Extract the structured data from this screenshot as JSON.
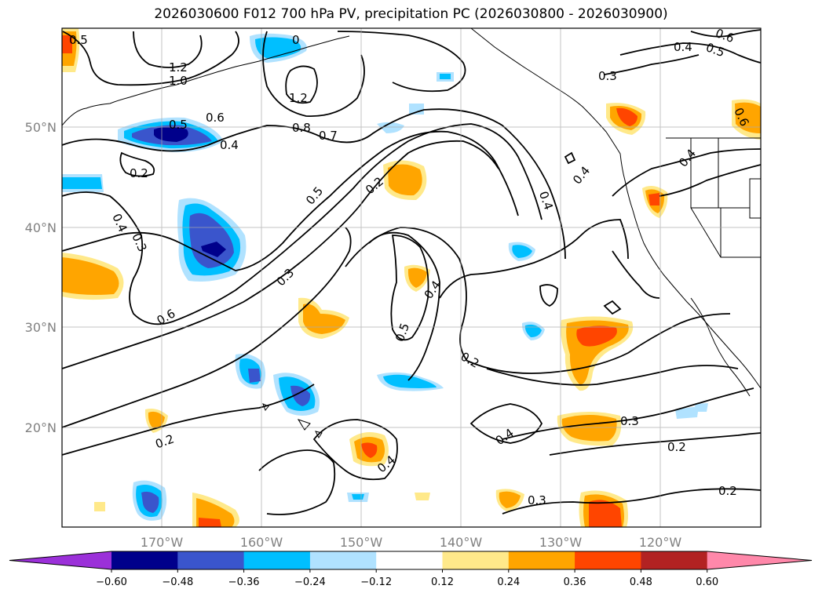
{
  "title": "2026030600 F012 700 hPa PV, precipitation PC (2026030800 - 2026030900)",
  "map": {
    "lat_labels": [
      "50°N",
      "40°N",
      "30°N",
      "20°N"
    ],
    "lon_labels": [
      "170°W",
      "160°W",
      "150°W",
      "140°W",
      "130°W",
      "120°W"
    ]
  },
  "contour_labels": [
    {
      "text": "0.5"
    },
    {
      "text": "1.2"
    },
    {
      "text": "1.0"
    },
    {
      "text": "0"
    },
    {
      "text": "1.2"
    },
    {
      "text": "0.6"
    },
    {
      "text": "0.5"
    },
    {
      "text": "0.4"
    },
    {
      "text": "0.8"
    },
    {
      "text": "0.7"
    },
    {
      "text": "0.2"
    },
    {
      "text": "0.4"
    },
    {
      "text": "0.3"
    },
    {
      "text": "0.5"
    },
    {
      "text": "0.2"
    },
    {
      "text": "0.4"
    },
    {
      "text": "0.3"
    },
    {
      "text": "0.6"
    },
    {
      "text": "0.4"
    },
    {
      "text": "0.5"
    },
    {
      "text": "0.2"
    },
    {
      "text": "0.2"
    },
    {
      "text": "0.4"
    },
    {
      "text": "0.4"
    },
    {
      "text": "0.3"
    },
    {
      "text": "0.2"
    },
    {
      "text": "0.4"
    },
    {
      "text": "0.3"
    },
    {
      "text": "0.2"
    },
    {
      "text": "0.4"
    },
    {
      "text": "0.5"
    },
    {
      "text": "0.6"
    },
    {
      "text": "0.4"
    },
    {
      "text": "0.3"
    },
    {
      "text": "0.6"
    }
  ],
  "colorbar": {
    "tick_labels": [
      "−0.60",
      "−0.48",
      "−0.36",
      "−0.24",
      "−0.12",
      "0.12",
      "0.24",
      "0.36",
      "0.48",
      "0.60"
    ],
    "colors": [
      "#9b30d9",
      "#00008b",
      "#3a55cc",
      "#00bfff",
      "#b0e2ff",
      "#ffffff",
      "#ffe98a",
      "#ffa500",
      "#ff4500",
      "#b22222",
      "#ff88aa"
    ]
  }
}
